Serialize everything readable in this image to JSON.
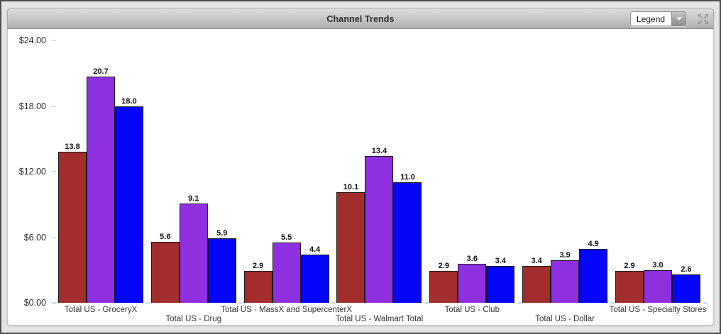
{
  "header": {
    "title": "Channel Trends",
    "legend_label": "Legend"
  },
  "chart_data": {
    "type": "bar",
    "title": "Channel Trends",
    "categories": [
      "Total US - GroceryX",
      "Total US - Drug",
      "Total US - MassX and SupercenterX",
      "Total US - Walmart Total",
      "Total US - Club",
      "Total US - Dollar",
      "Total US - Specialty Stores"
    ],
    "series": [
      {
        "color": "#A32C2C",
        "values": [
          13.8,
          5.6,
          2.9,
          10.1,
          2.9,
          3.4,
          2.9
        ]
      },
      {
        "color": "#8E2FE0",
        "values": [
          20.7,
          9.1,
          5.5,
          13.4,
          3.6,
          3.9,
          3.0
        ]
      },
      {
        "color": "#0505FA",
        "values": [
          18.0,
          5.9,
          4.4,
          11.0,
          3.4,
          4.9,
          2.6
        ]
      }
    ],
    "ylim": [
      0,
      24
    ],
    "yticks": [
      {
        "value": 24,
        "label": "$24.00"
      },
      {
        "value": 18,
        "label": "$18.00"
      },
      {
        "value": 12,
        "label": "$12.00"
      },
      {
        "value": 6,
        "label": "$6.00"
      },
      {
        "value": 0,
        "label": "$0.00"
      }
    ],
    "value_label_decimals": 1,
    "grid": false,
    "legend_position": "collapsed-dropdown",
    "bar_border_color": "#1c1c1c",
    "tick_color": "#cfe0f2"
  }
}
